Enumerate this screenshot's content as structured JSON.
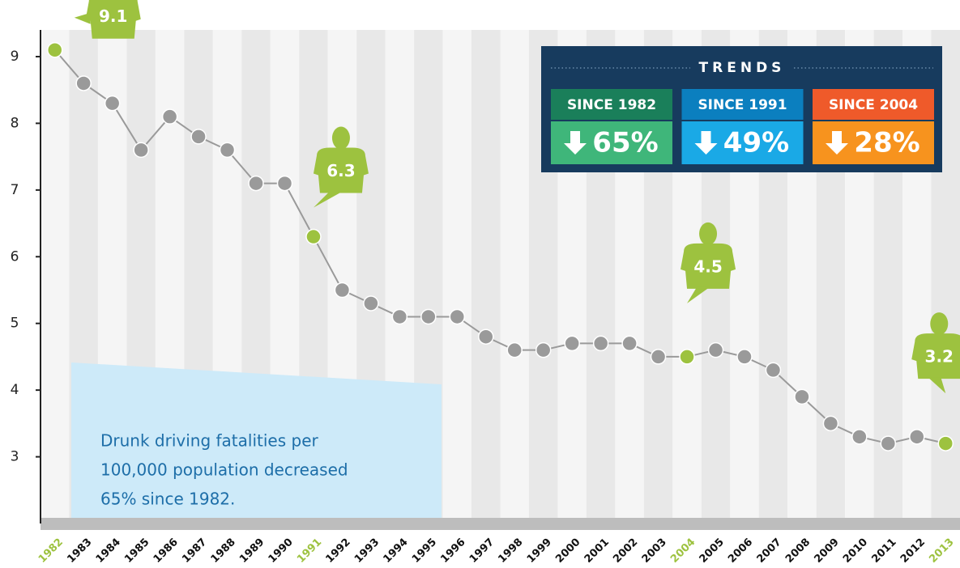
{
  "chart_data": {
    "type": "line",
    "categories": [
      "1982",
      "1983",
      "1984",
      "1985",
      "1986",
      "1987",
      "1988",
      "1989",
      "1990",
      "1991",
      "1992",
      "1993",
      "1994",
      "1995",
      "1996",
      "1997",
      "1998",
      "1999",
      "2000",
      "2001",
      "2002",
      "2003",
      "2004",
      "2005",
      "2006",
      "2007",
      "2008",
      "2009",
      "2010",
      "2011",
      "2012",
      "2013"
    ],
    "values": [
      9.1,
      8.6,
      8.3,
      7.6,
      8.1,
      7.8,
      7.6,
      7.1,
      7.1,
      6.3,
      5.5,
      5.3,
      5.1,
      5.1,
      5.1,
      4.8,
      4.6,
      4.6,
      4.7,
      4.7,
      4.7,
      4.5,
      4.5,
      4.6,
      4.5,
      4.3,
      3.9,
      3.5,
      3.3,
      3.2,
      3.3,
      3.2
    ],
    "value_labels": [
      "9.1",
      null,
      null,
      null,
      null,
      null,
      null,
      null,
      null,
      "6.3",
      null,
      null,
      null,
      null,
      null,
      null,
      null,
      null,
      null,
      null,
      null,
      null,
      "4.5",
      null,
      null,
      null,
      null,
      null,
      null,
      null,
      null,
      "3.2"
    ],
    "color": "#9a9a9a",
    "highlight_color": "#9dc23f",
    "ylim": [
      2,
      9.4
    ],
    "yticks": [
      3,
      4,
      5,
      6,
      7,
      8,
      9
    ],
    "annotation": [
      "Drunk driving fatalities per",
      "100,000 population decreased",
      "65% since 1982."
    ],
    "trends": {
      "title": "TRENDS",
      "items": [
        {
          "label": "SINCE 1982",
          "value": "65%",
          "color": "#1a7f5a",
          "value_color": "#3fb67a"
        },
        {
          "label": "SINCE 1991",
          "value": "49%",
          "color": "#0b7fbf",
          "value_color": "#1aa9e6"
        },
        {
          "label": "SINCE 2004",
          "value": "28%",
          "color": "#ef5a2a",
          "value_color": "#f7931e"
        }
      ]
    }
  }
}
